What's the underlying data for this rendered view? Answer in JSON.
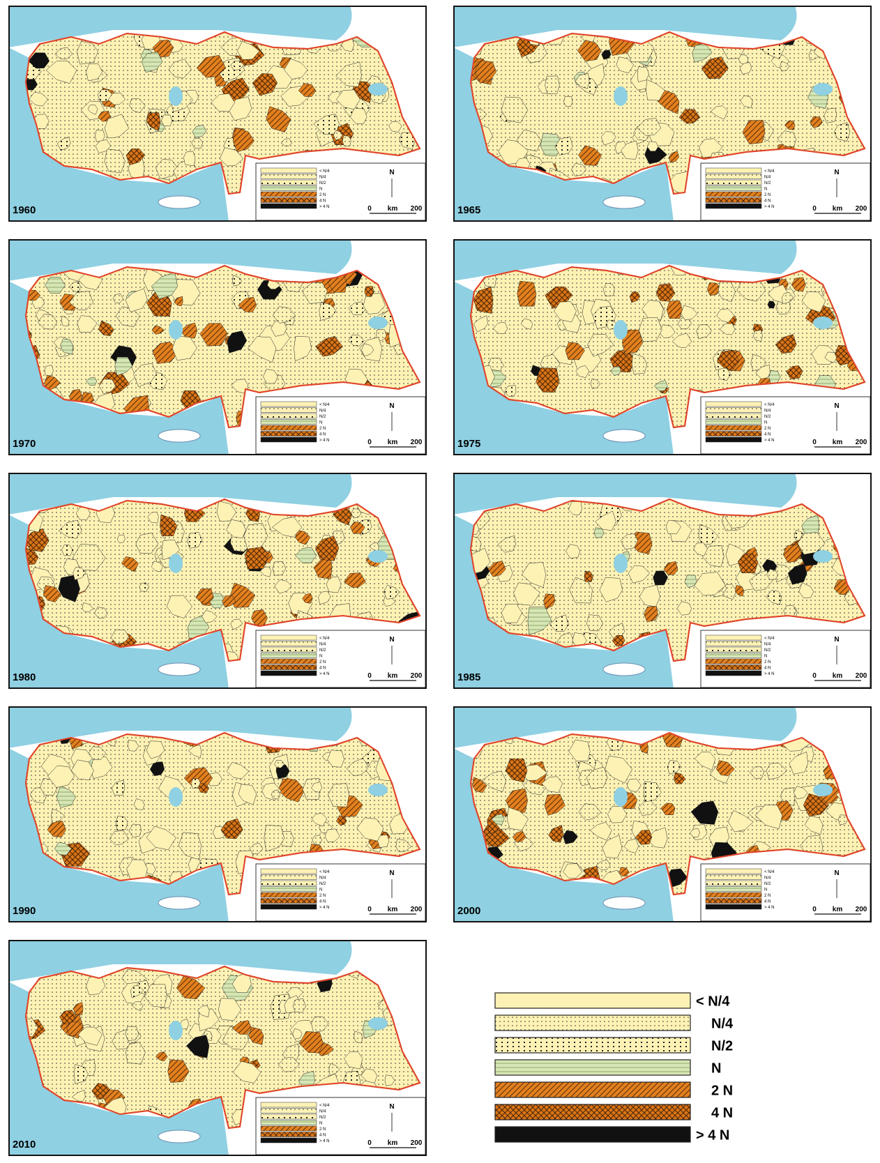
{
  "maps": [
    {
      "year": "1960"
    },
    {
      "year": "1965"
    },
    {
      "year": "1970"
    },
    {
      "year": "1975"
    },
    {
      "year": "1980"
    },
    {
      "year": "1985"
    },
    {
      "year": "1990"
    },
    {
      "year": "2000"
    },
    {
      "year": "2010"
    }
  ],
  "legend": {
    "items": [
      {
        "label": "< N/4"
      },
      {
        "label": "N/4"
      },
      {
        "label": "N/2"
      },
      {
        "label": "N"
      },
      {
        "label": "2 N"
      },
      {
        "label": "4 N"
      },
      {
        "label": "> 4 N"
      }
    ]
  },
  "north": "N",
  "scale": {
    "start": "0",
    "unit": "km",
    "end": "200"
  }
}
